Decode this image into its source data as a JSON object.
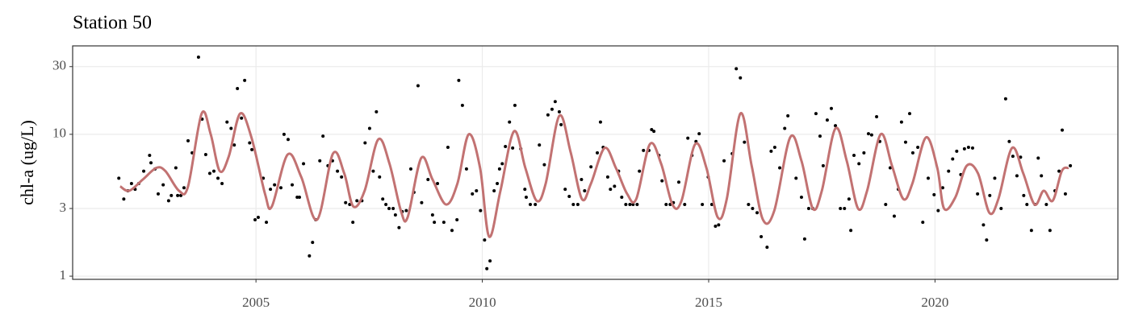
{
  "chart_data": {
    "type": "scatter",
    "title": "Station 50",
    "y_label": "chl-a (ug/L)",
    "xlim": [
      2000.95,
      2024.04
    ],
    "xticks": [
      2005,
      2010,
      2015,
      2020
    ],
    "ylim": [
      0.95,
      42
    ],
    "yticks": [
      1,
      3,
      10,
      30
    ],
    "log_y": true,
    "grid": true,
    "points": {
      "color": "#000000",
      "x": [
        2001.97,
        2002.08,
        2002.17,
        2002.25,
        2002.33,
        2002.41,
        2002.52,
        2002.65,
        2002.68,
        2002.77,
        2002.84,
        2002.95,
        2003.07,
        2003.13,
        2003.23,
        2003.27,
        2003.34,
        2003.41,
        2003.5,
        2003.59,
        2003.73,
        2003.81,
        2003.89,
        2003.98,
        2004.07,
        2004.16,
        2004.25,
        2004.36,
        2004.45,
        2004.52,
        2004.59,
        2004.68,
        2004.75,
        2004.86,
        2004.91,
        2004.98,
        2005.05,
        2005.16,
        2005.23,
        2005.32,
        2005.41,
        2005.55,
        2005.62,
        2005.71,
        2005.8,
        2005.91,
        2005.96,
        2006.05,
        2006.18,
        2006.25,
        2006.32,
        2006.41,
        2006.48,
        2006.59,
        2006.69,
        2006.8,
        2006.89,
        2006.98,
        2007.07,
        2007.14,
        2007.23,
        2007.34,
        2007.41,
        2007.51,
        2007.59,
        2007.66,
        2007.73,
        2007.8,
        2007.87,
        2007.94,
        2008.03,
        2008.08,
        2008.16,
        2008.23,
        2008.32,
        2008.42,
        2008.49,
        2008.58,
        2008.66,
        2008.8,
        2008.9,
        2008.94,
        2009.01,
        2009.15,
        2009.24,
        2009.33,
        2009.44,
        2009.48,
        2009.56,
        2009.65,
        2009.78,
        2009.87,
        2009.96,
        2010.05,
        2010.1,
        2010.17,
        2010.26,
        2010.33,
        2010.38,
        2010.44,
        2010.51,
        2010.6,
        2010.67,
        2010.72,
        2010.85,
        2010.94,
        2010.97,
        2011.06,
        2011.17,
        2011.26,
        2011.37,
        2011.45,
        2011.54,
        2011.61,
        2011.7,
        2011.74,
        2011.83,
        2011.92,
        2012.01,
        2012.11,
        2012.19,
        2012.26,
        2012.4,
        2012.54,
        2012.61,
        2012.67,
        2012.77,
        2012.83,
        2012.92,
        2013.01,
        2013.08,
        2013.17,
        2013.26,
        2013.33,
        2013.42,
        2013.47,
        2013.56,
        2013.68,
        2013.74,
        2013.79,
        2013.9,
        2013.97,
        2014.06,
        2014.15,
        2014.22,
        2014.34,
        2014.47,
        2014.54,
        2014.63,
        2014.72,
        2014.79,
        2014.86,
        2014.99,
        2015.07,
        2015.15,
        2015.22,
        2015.34,
        2015.52,
        2015.61,
        2015.7,
        2015.79,
        2015.88,
        2015.97,
        2016.07,
        2016.16,
        2016.29,
        2016.38,
        2016.46,
        2016.57,
        2016.68,
        2016.75,
        2016.93,
        2017.05,
        2017.12,
        2017.21,
        2017.3,
        2017.37,
        2017.46,
        2017.53,
        2017.62,
        2017.71,
        2017.8,
        2017.91,
        2018.0,
        2018.1,
        2018.14,
        2018.21,
        2018.32,
        2018.43,
        2018.53,
        2018.6,
        2018.71,
        2018.78,
        2018.91,
        2019.01,
        2019.1,
        2019.19,
        2019.26,
        2019.35,
        2019.44,
        2019.51,
        2019.62,
        2019.73,
        2019.85,
        2019.98,
        2020.07,
        2020.17,
        2020.3,
        2020.39,
        2020.48,
        2020.57,
        2020.65,
        2020.74,
        2020.83,
        2020.94,
        2021.07,
        2021.14,
        2021.21,
        2021.32,
        2021.46,
        2021.56,
        2021.64,
        2021.72,
        2021.81,
        2021.89,
        2021.96,
        2022.03,
        2022.13,
        2022.21,
        2022.28,
        2022.35,
        2022.46,
        2022.54,
        2022.65,
        2022.74,
        2022.81,
        2022.88,
        2022.99
      ],
      "y": [
        4.9,
        3.5,
        4.0,
        4.5,
        4.1,
        4.5,
        5.5,
        7.1,
        6.3,
        5.7,
        3.8,
        4.4,
        3.4,
        3.7,
        5.8,
        3.7,
        3.7,
        4.2,
        9.0,
        7.4,
        35,
        12.8,
        7.2,
        5.3,
        5.5,
        4.9,
        4.5,
        12.2,
        11,
        8.4,
        21,
        13,
        24,
        8.7,
        7.8,
        2.5,
        2.6,
        4.9,
        2.4,
        4.1,
        4.4,
        4.2,
        10,
        9.2,
        4.4,
        3.6,
        3.6,
        6.2,
        1.39,
        1.73,
        2.5,
        6.5,
        9.7,
        6.0,
        6.5,
        5.5,
        5.0,
        3.3,
        3.2,
        2.4,
        3.4,
        3.4,
        8.7,
        11,
        5.5,
        14.4,
        5.0,
        3.5,
        3.2,
        3.0,
        3.0,
        2.7,
        2.2,
        2.85,
        2.9,
        5.7,
        3.9,
        22,
        3.3,
        4.8,
        2.7,
        2.4,
        4.5,
        2.4,
        8.1,
        2.1,
        2.5,
        24,
        16,
        5.7,
        3.8,
        4.0,
        2.9,
        1.8,
        1.13,
        1.28,
        4.0,
        4.5,
        5.7,
        6.2,
        8.2,
        12.2,
        8.0,
        16,
        7.9,
        4.1,
        3.6,
        3.2,
        3.2,
        8.4,
        6.1,
        13.7,
        15,
        17,
        14.4,
        11.7,
        4.1,
        3.65,
        3.2,
        3.2,
        4.8,
        4.0,
        5.9,
        7.4,
        12.2,
        8.1,
        5.0,
        4.1,
        4.3,
        5.5,
        3.6,
        3.2,
        3.2,
        3.2,
        3.2,
        5.5,
        7.7,
        7.7,
        10.8,
        10.5,
        7.1,
        4.7,
        3.2,
        3.2,
        3.3,
        4.6,
        3.2,
        9.4,
        7.1,
        8.9,
        10.1,
        3.2,
        5.0,
        3.2,
        2.25,
        2.3,
        6.5,
        7.3,
        29,
        25,
        8.8,
        3.2,
        3.0,
        2.8,
        1.9,
        1.6,
        7.6,
        8.1,
        5.8,
        11,
        13.5,
        4.9,
        3.6,
        1.83,
        3.0,
        3.0,
        14,
        9.7,
        6.0,
        12.6,
        15.2,
        11.5,
        3.0,
        3.0,
        3.5,
        2.1,
        7.1,
        6.2,
        7.4,
        10.1,
        9.9,
        13.3,
        8.9,
        3.2,
        5.8,
        2.65,
        4.1,
        12.2,
        8.8,
        14,
        7.4,
        8.1,
        2.4,
        4.9,
        3.75,
        2.9,
        4.2,
        5.5,
        6.7,
        7.6,
        5.2,
        7.9,
        8.1,
        8.0,
        3.8,
        2.3,
        1.8,
        3.7,
        4.9,
        3.0,
        17.8,
        8.9,
        7.0,
        5.1,
        6.9,
        3.7,
        3.2,
        2.1,
        3.2,
        6.8,
        5.1,
        3.2,
        2.1,
        4.0,
        5.5,
        10.7,
        3.8,
        6.0
      ]
    },
    "line": {
      "color": "#c27272",
      "x": [
        2002.0,
        2002.2,
        2002.5,
        2002.8,
        2003.0,
        2003.3,
        2003.5,
        2003.8,
        2004.0,
        2004.2,
        2004.4,
        2004.65,
        2004.9,
        2005.2,
        2005.35,
        2005.7,
        2006.0,
        2006.35,
        2006.7,
        2006.95,
        2007.15,
        2007.4,
        2007.7,
        2007.95,
        2008.2,
        2008.35,
        2008.65,
        2008.9,
        2009.2,
        2009.45,
        2009.7,
        2009.95,
        2010.15,
        2010.4,
        2010.7,
        2010.95,
        2011.2,
        2011.4,
        2011.7,
        2011.95,
        2012.2,
        2012.4,
        2012.7,
        2012.95,
        2013.2,
        2013.4,
        2013.7,
        2013.95,
        2014.2,
        2014.4,
        2014.7,
        2014.95,
        2015.2,
        2015.4,
        2015.7,
        2015.95,
        2016.2,
        2016.45,
        2016.8,
        2017.05,
        2017.3,
        2017.5,
        2017.8,
        2018.05,
        2018.3,
        2018.5,
        2018.8,
        2019.05,
        2019.3,
        2019.5,
        2019.8,
        2020.05,
        2020.2,
        2020.45,
        2020.7,
        2020.95,
        2021.2,
        2021.4,
        2021.7,
        2021.95,
        2022.2,
        2022.4,
        2022.6,
        2022.8,
        2022.95
      ],
      "y": [
        4.3,
        4.0,
        4.8,
        5.8,
        5.5,
        4.0,
        4.3,
        14,
        10,
        5.5,
        7,
        14,
        9.5,
        3.8,
        3.1,
        7.2,
        5,
        2.5,
        7.3,
        5.3,
        3.1,
        4,
        9.2,
        6.2,
        2.9,
        2.6,
        6.8,
        4.8,
        3.2,
        4.5,
        10,
        5.8,
        1.9,
        4,
        10.5,
        5.8,
        3.4,
        4.5,
        13.5,
        7.5,
        3.5,
        4.5,
        8,
        5.8,
        3.8,
        3.5,
        8.5,
        6.2,
        3.2,
        3.4,
        8.5,
        5.8,
        2.6,
        3.5,
        14,
        6,
        2.5,
        2.9,
        9.5,
        6.5,
        3,
        4,
        11,
        6.5,
        3,
        4,
        10,
        6,
        3.5,
        4.5,
        9.5,
        5.8,
        3,
        3.6,
        6,
        5.3,
        2.8,
        3.5,
        8,
        5.3,
        3.2,
        4,
        3.4,
        5.5,
        5.8
      ]
    }
  }
}
